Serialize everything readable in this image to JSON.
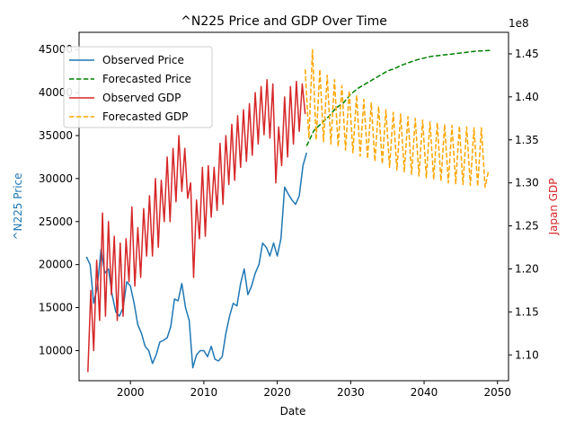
{
  "chart_data": {
    "type": "line",
    "title": "^N225 Price and GDP Over Time",
    "xlabel": "Date",
    "ylabel_left": "^N225 Price",
    "ylabel_right": "Japan GDP",
    "right_axis_offset_text": "1e8",
    "xlim": [
      1993,
      2051.5
    ],
    "ylim_left": [
      6500,
      47000
    ],
    "ylim_right": [
      1.07,
      1.475
    ],
    "x_ticks": [
      2000,
      2010,
      2020,
      2030,
      2040,
      2050
    ],
    "x_tick_labels": [
      "2000",
      "2010",
      "2020",
      "2030",
      "2040",
      "2050"
    ],
    "y_left_ticks": [
      10000,
      15000,
      20000,
      25000,
      30000,
      35000,
      40000,
      45000
    ],
    "y_left_tick_labels": [
      "10000",
      "15000",
      "20000",
      "25000",
      "30000",
      "35000",
      "40000",
      "45000"
    ],
    "y_right_ticks": [
      1.1,
      1.15,
      1.2,
      1.25,
      1.3,
      1.35,
      1.4,
      1.45
    ],
    "y_right_tick_labels": [
      "1.10",
      "1.15",
      "1.20",
      "1.25",
      "1.30",
      "1.35",
      "1.40",
      "1.45"
    ],
    "legend_position": "upper-left",
    "grid": false,
    "series": [
      {
        "name": "Observed Price",
        "axis": "left",
        "style": "solid",
        "color": "#1f77b4",
        "x": [
          1994.0,
          1994.5,
          1995.0,
          1995.5,
          1996.0,
          1996.5,
          1997.0,
          1997.5,
          1998.0,
          1998.5,
          1999.0,
          1999.5,
          2000.0,
          2000.5,
          2001.0,
          2001.5,
          2002.0,
          2002.5,
          2003.0,
          2003.5,
          2004.0,
          2004.5,
          2005.0,
          2005.5,
          2006.0,
          2006.5,
          2007.0,
          2007.5,
          2008.0,
          2008.5,
          2009.0,
          2009.5,
          2010.0,
          2010.5,
          2011.0,
          2011.5,
          2012.0,
          2012.5,
          2013.0,
          2013.5,
          2014.0,
          2014.5,
          2015.0,
          2015.5,
          2016.0,
          2016.5,
          2017.0,
          2017.5,
          2018.0,
          2018.5,
          2019.0,
          2019.5,
          2020.0,
          2020.5,
          2021.0,
          2021.5,
          2022.0,
          2022.5,
          2023.0,
          2023.5,
          2024.0
        ],
        "values": [
          20900,
          20000,
          15500,
          17500,
          21800,
          19000,
          19500,
          16500,
          14500,
          14000,
          15000,
          18000,
          17500,
          15500,
          13000,
          12000,
          10500,
          10000,
          8500,
          9500,
          11000,
          11200,
          11500,
          12800,
          16000,
          15800,
          17800,
          15000,
          13500,
          8000,
          9500,
          10000,
          10000,
          9300,
          10500,
          9000,
          8800,
          9300,
          12000,
          14000,
          15500,
          15200,
          17800,
          19500,
          16500,
          17500,
          19000,
          20000,
          22500,
          22000,
          21000,
          22500,
          21000,
          23000,
          29000,
          28200,
          27500,
          27000,
          28000,
          31500,
          33000
        ]
      },
      {
        "name": "Forecasted Price",
        "axis": "left",
        "style": "dashed",
        "color": "#008000",
        "x": [
          2024.0,
          2025.0,
          2026.0,
          2027.0,
          2028.0,
          2029.0,
          2030.0,
          2031.0,
          2032.0,
          2033.0,
          2034.0,
          2035.0,
          2036.0,
          2037.0,
          2038.0,
          2039.0,
          2040.0,
          2041.0,
          2042.0,
          2043.0,
          2044.0,
          2045.0,
          2046.0,
          2047.0,
          2048.0,
          2049.0
        ],
        "values": [
          33800,
          35600,
          36400,
          37200,
          38200,
          38800,
          39800,
          40500,
          41000,
          41500,
          42000,
          42500,
          42800,
          43200,
          43500,
          43800,
          44000,
          44200,
          44300,
          44400,
          44500,
          44600,
          44700,
          44800,
          44850,
          44900
        ]
      },
      {
        "name": "Observed GDP",
        "axis": "right",
        "style": "solid",
        "color": "#d62728",
        "x": [
          1994.2,
          1994.6,
          1995.0,
          1995.4,
          1995.8,
          1996.2,
          1996.6,
          1997.0,
          1997.4,
          1997.8,
          1998.2,
          1998.6,
          1999.0,
          1999.4,
          1999.8,
          2000.2,
          2000.6,
          2001.0,
          2001.4,
          2001.8,
          2002.2,
          2002.6,
          2003.0,
          2003.4,
          2003.8,
          2004.2,
          2004.6,
          2005.0,
          2005.4,
          2005.8,
          2006.2,
          2006.6,
          2007.0,
          2007.4,
          2007.8,
          2008.2,
          2008.6,
          2009.0,
          2009.4,
          2009.8,
          2010.2,
          2010.6,
          2011.0,
          2011.4,
          2011.8,
          2012.2,
          2012.6,
          2013.0,
          2013.4,
          2013.8,
          2014.2,
          2014.6,
          2015.0,
          2015.4,
          2015.8,
          2016.2,
          2016.6,
          2017.0,
          2017.4,
          2017.8,
          2018.2,
          2018.6,
          2019.0,
          2019.4,
          2019.8,
          2020.2,
          2020.6,
          2021.0,
          2021.4,
          2021.8,
          2022.2,
          2022.6,
          2023.0,
          2023.4,
          2023.8
        ],
        "values": [
          1.08,
          1.175,
          1.105,
          1.21,
          1.14,
          1.265,
          1.145,
          1.255,
          1.17,
          1.238,
          1.14,
          1.23,
          1.145,
          1.235,
          1.185,
          1.272,
          1.18,
          1.248,
          1.19,
          1.27,
          1.215,
          1.285,
          1.215,
          1.305,
          1.225,
          1.303,
          1.255,
          1.33,
          1.255,
          1.34,
          1.278,
          1.355,
          1.29,
          1.34,
          1.282,
          1.3,
          1.19,
          1.28,
          1.235,
          1.318,
          1.238,
          1.32,
          1.26,
          1.318,
          1.268,
          1.346,
          1.275,
          1.355,
          1.298,
          1.368,
          1.303,
          1.378,
          1.318,
          1.385,
          1.325,
          1.392,
          1.332,
          1.405,
          1.345,
          1.412,
          1.356,
          1.42,
          1.352,
          1.415,
          1.3,
          1.365,
          1.32,
          1.4,
          1.33,
          1.412,
          1.345,
          1.418,
          1.36,
          1.415,
          1.38
        ]
      },
      {
        "name": "Forecasted GDP",
        "axis": "right",
        "style": "dashed",
        "color": "#ffa500",
        "x": [
          2023.8,
          2024.3,
          2024.8,
          2025.3,
          2025.8,
          2026.3,
          2026.8,
          2027.3,
          2027.8,
          2028.3,
          2028.8,
          2029.3,
          2029.8,
          2030.3,
          2030.8,
          2031.3,
          2031.8,
          2032.3,
          2032.8,
          2033.3,
          2033.8,
          2034.3,
          2034.8,
          2035.3,
          2035.8,
          2036.3,
          2036.8,
          2037.3,
          2037.8,
          2038.3,
          2038.8,
          2039.3,
          2039.8,
          2040.3,
          2040.8,
          2041.3,
          2041.8,
          2042.3,
          2042.8,
          2043.3,
          2043.8,
          2044.3,
          2044.8,
          2045.3,
          2045.8,
          2046.3,
          2046.8,
          2047.3,
          2047.8,
          2048.3,
          2048.8
        ],
        "values": [
          1.432,
          1.352,
          1.455,
          1.35,
          1.432,
          1.348,
          1.425,
          1.345,
          1.42,
          1.342,
          1.413,
          1.338,
          1.407,
          1.335,
          1.402,
          1.331,
          1.397,
          1.328,
          1.393,
          1.325,
          1.389,
          1.322,
          1.385,
          1.318,
          1.382,
          1.315,
          1.38,
          1.313,
          1.377,
          1.31,
          1.375,
          1.308,
          1.373,
          1.306,
          1.371,
          1.304,
          1.37,
          1.302,
          1.368,
          1.3,
          1.367,
          1.299,
          1.366,
          1.298,
          1.365,
          1.297,
          1.364,
          1.296,
          1.364,
          1.295,
          1.315
        ]
      }
    ]
  }
}
